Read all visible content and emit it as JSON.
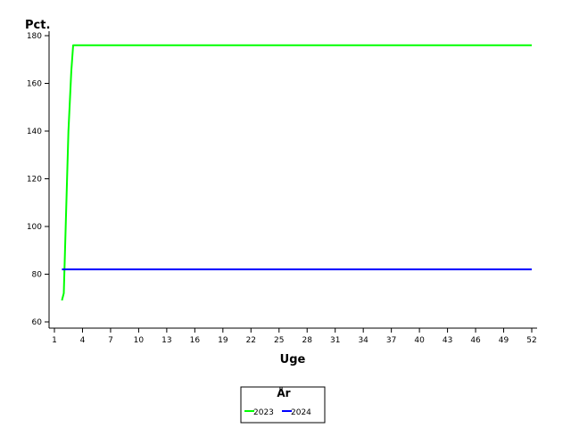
{
  "chart_data": {
    "type": "line",
    "xlabel": "Uge",
    "ylabel": "Pct.",
    "xlim": [
      1,
      52
    ],
    "ylim": [
      60,
      180
    ],
    "xticks": [
      1,
      4,
      7,
      10,
      13,
      16,
      19,
      22,
      25,
      28,
      31,
      34,
      37,
      40,
      43,
      46,
      49,
      52
    ],
    "yticks": [
      60,
      80,
      100,
      120,
      140,
      160,
      180
    ],
    "grid": false,
    "legend": {
      "title": "År",
      "position": "bottom-center"
    },
    "series": [
      {
        "name": "2023",
        "color": "#00ff00",
        "x": [
          1.8,
          2.0,
          2.5,
          2.8,
          3.0,
          52
        ],
        "y": [
          69,
          72,
          140,
          165,
          176,
          176
        ]
      },
      {
        "name": "2024",
        "color": "#0000ff",
        "x": [
          1.8,
          52
        ],
        "y": [
          82,
          82
        ]
      }
    ]
  }
}
